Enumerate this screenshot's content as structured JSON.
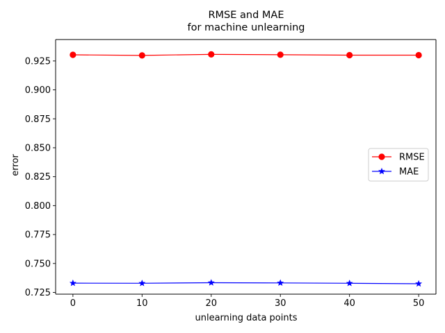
{
  "chart_data": {
    "type": "line",
    "title": "RMSE and MAE",
    "subtitle": "for machine unlearning",
    "xlabel": "unlearning data points",
    "ylabel": "error",
    "x": [
      0,
      10,
      20,
      30,
      40,
      50
    ],
    "xlim": [
      -2.5,
      52.5
    ],
    "ylim": [
      0.7235,
      0.9435
    ],
    "xticks": [
      0,
      10,
      20,
      30,
      40,
      50
    ],
    "xtick_labels": [
      "0",
      "10",
      "20",
      "30",
      "40",
      "50"
    ],
    "yticks": [
      0.725,
      0.75,
      0.775,
      0.8,
      0.825,
      0.85,
      0.875,
      0.9,
      0.925
    ],
    "ytick_labels": [
      "0.725",
      "0.750",
      "0.775",
      "0.800",
      "0.825",
      "0.850",
      "0.875",
      "0.900",
      "0.925"
    ],
    "grid": false,
    "legend_position": "center-right",
    "series": [
      {
        "name": "RMSE",
        "color": "#ff0000",
        "marker": "circle",
        "values": [
          0.9303,
          0.9298,
          0.9307,
          0.9304,
          0.93,
          0.93
        ]
      },
      {
        "name": "MAE",
        "color": "#0000ff",
        "marker": "star",
        "values": [
          0.733,
          0.7329,
          0.7334,
          0.7332,
          0.7329,
          0.7325
        ]
      }
    ]
  }
}
